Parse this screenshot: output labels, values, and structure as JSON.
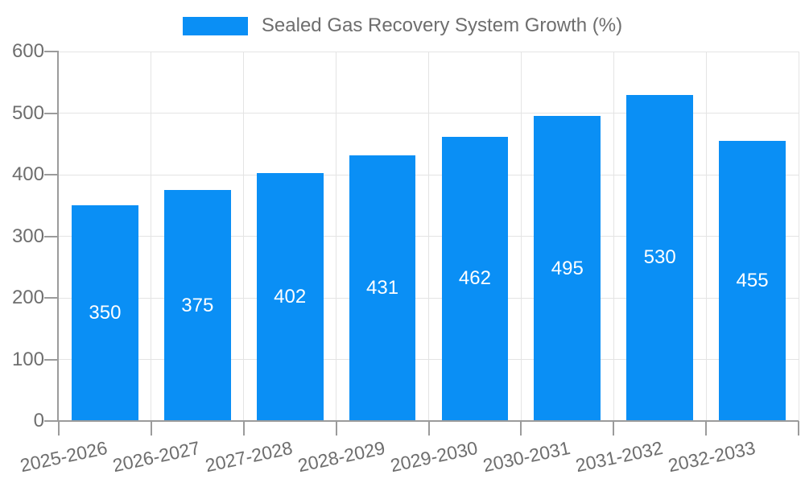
{
  "chart_data": {
    "type": "bar",
    "title": "Sealed Gas Recovery System Growth (%)",
    "legend": {
      "label": "Sealed Gas Recovery System Growth (%)",
      "position": "top-center"
    },
    "categories": [
      "2025-2026",
      "2026-2027",
      "2027-2028",
      "2028-2029",
      "2029-2030",
      "2030-2031",
      "2031-2032",
      "2032-2033"
    ],
    "series": [
      {
        "name": "Sealed Gas Recovery System Growth (%)",
        "values": [
          350,
          375,
          402,
          431,
          462,
          495,
          530,
          455
        ]
      }
    ],
    "xlabel": "",
    "ylabel": "",
    "ylim": [
      0,
      600
    ],
    "yticks": [
      0,
      100,
      200,
      300,
      400,
      500,
      600
    ],
    "grid": true,
    "x_label_rotation_deg": -12,
    "bar_value_labels_inside": true,
    "colors": {
      "bar": "#0a8ff5",
      "bar_label": "#ffffff",
      "grid": "#e4e4e4",
      "axis": "#9b9b9b",
      "tick": "#9b9b9b",
      "text": "#6e6e6e",
      "background": "#ffffff"
    }
  }
}
